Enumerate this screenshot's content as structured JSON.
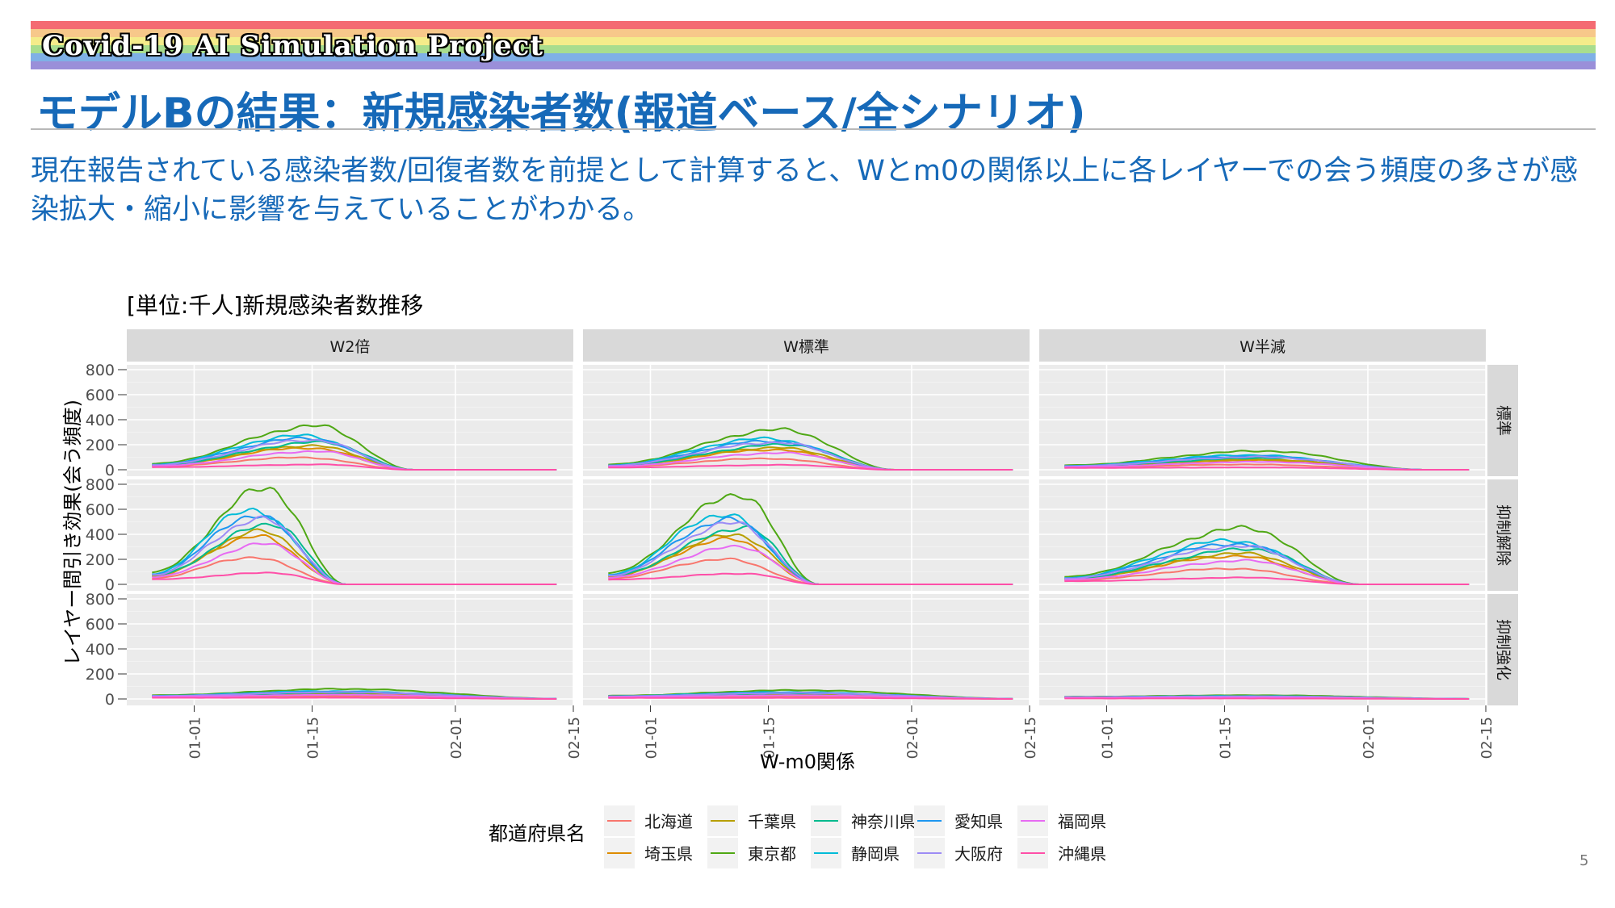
{
  "header": {
    "project_title": "Covid-19 AI Simulation Project",
    "rainbow_colors": [
      "#f46b72",
      "#f7c88a",
      "#f4ec8a",
      "#a8dd8e",
      "#7fb0e6",
      "#9a8fd9"
    ]
  },
  "page_title": "モデルBの結果：新規感染者数(報道ベース/全シナリオ)",
  "subtitle": "現在報告されている感染者数/回復者数を前提として計算すると、Wとm0の関係以上に各レイヤーでの会う頻度の多さが感染拡大・縮小に影響を与えていることがわかる。",
  "page_number": "5",
  "chart_data": {
    "type": "line",
    "title": "[単位:千人]新規感染者数推移",
    "xlabel": "W-m0関係",
    "ylabel": "レイヤー間引き効果(会う頻度)",
    "ylim": [
      0,
      800
    ],
    "yticks": [
      0,
      200,
      400,
      600,
      800
    ],
    "xlim": [
      "12-24",
      "02-15"
    ],
    "xticks": [
      "01-01",
      "01-15",
      "02-01",
      "02-15"
    ],
    "grid": true,
    "legend_position": "bottom",
    "facet_columns": [
      "W2倍",
      "W標準",
      "W半減"
    ],
    "facet_rows": [
      "標準",
      "抑制解除",
      "抑制強化"
    ],
    "legend_title": "都道府県名",
    "series": [
      {
        "name": "北海道",
        "color": "#f8766d",
        "scale": 0.28
      },
      {
        "name": "埼玉県",
        "color": "#de8c00",
        "scale": 0.5
      },
      {
        "name": "千葉県",
        "color": "#b79f00",
        "scale": 0.55
      },
      {
        "name": "東京都",
        "color": "#4fa814",
        "scale": 1.0
      },
      {
        "name": "神奈川県",
        "color": "#00ba8e",
        "scale": 0.63
      },
      {
        "name": "静岡県",
        "color": "#00bcd8",
        "scale": 0.78
      },
      {
        "name": "愛知県",
        "color": "#1e97f0",
        "scale": 0.72
      },
      {
        "name": "大阪府",
        "color": "#9d8cf5",
        "scale": 0.68
      },
      {
        "name": "福岡県",
        "color": "#e76bf3",
        "scale": 0.42
      },
      {
        "name": "沖縄県",
        "color": "#ff4fa8",
        "scale": 0.12
      }
    ],
    "panels": [
      {
        "row": "標準",
        "col": "W2倍",
        "peak": 350,
        "peak_date": "01-15",
        "end_date": "01-27",
        "start": 40
      },
      {
        "row": "標準",
        "col": "W標準",
        "peak": 320,
        "peak_date": "01-16",
        "end_date": "01-30",
        "start": 35
      },
      {
        "row": "標準",
        "col": "W半減",
        "peak": 150,
        "peak_date": "01-19",
        "end_date": "02-08",
        "start": 30
      },
      {
        "row": "抑制解除",
        "col": "W2倍",
        "peak": 770,
        "peak_date": "01-09",
        "end_date": "01-19",
        "start": 80
      },
      {
        "row": "抑制解除",
        "col": "W標準",
        "peak": 720,
        "peak_date": "01-11",
        "end_date": "01-21",
        "start": 75
      },
      {
        "row": "抑制解除",
        "col": "W半減",
        "peak": 450,
        "peak_date": "01-17",
        "end_date": "01-31",
        "start": 50
      },
      {
        "row": "抑制強化",
        "col": "W2倍",
        "peak": 80,
        "peak_date": "01-18",
        "end_date": "02-15",
        "start": 25
      },
      {
        "row": "抑制強化",
        "col": "W標準",
        "peak": 70,
        "peak_date": "01-18",
        "end_date": "02-15",
        "start": 22
      },
      {
        "row": "抑制強化",
        "col": "W半減",
        "peak": 30,
        "peak_date": "01-18",
        "end_date": "02-15",
        "start": 15
      }
    ]
  }
}
